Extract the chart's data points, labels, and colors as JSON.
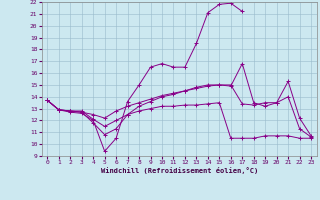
{
  "xlabel": "Windchill (Refroidissement éolien,°C)",
  "bg_color": "#cce8f0",
  "line_color": "#880088",
  "xlim": [
    -0.5,
    23.5
  ],
  "ylim": [
    9,
    22
  ],
  "xticks": [
    0,
    1,
    2,
    3,
    4,
    5,
    6,
    7,
    8,
    9,
    10,
    11,
    12,
    13,
    14,
    15,
    16,
    17,
    18,
    19,
    20,
    21,
    22,
    23
  ],
  "yticks": [
    9,
    10,
    11,
    12,
    13,
    14,
    15,
    16,
    17,
    18,
    19,
    20,
    21,
    22
  ],
  "series": [
    {
      "x": [
        0,
        1,
        2,
        3,
        4,
        5,
        6,
        7,
        8,
        9,
        10,
        11,
        12,
        13,
        14,
        15,
        16,
        17,
        18,
        19,
        20,
        21,
        22,
        23
      ],
      "y": [
        13.7,
        12.9,
        12.7,
        12.6,
        12.0,
        9.4,
        10.5,
        13.6,
        15.0,
        16.5,
        16.8,
        16.5,
        16.5,
        18.5,
        21.1,
        21.8,
        21.9,
        21.2,
        null,
        null,
        null,
        null,
        null,
        null
      ]
    },
    {
      "x": [
        0,
        1,
        2,
        3,
        4,
        5,
        6,
        7,
        8,
        9,
        10,
        11,
        12,
        13,
        14,
        15,
        16,
        17,
        18,
        19,
        20,
        21,
        22,
        23
      ],
      "y": [
        13.7,
        12.9,
        12.8,
        12.8,
        12.1,
        11.5,
        12.0,
        12.5,
        12.8,
        13.0,
        13.2,
        13.2,
        13.3,
        13.3,
        13.4,
        13.5,
        10.5,
        10.5,
        10.5,
        10.7,
        10.7,
        10.7,
        10.5,
        10.5
      ]
    },
    {
      "x": [
        0,
        1,
        2,
        3,
        4,
        5,
        6,
        7,
        8,
        9,
        10,
        11,
        12,
        13,
        14,
        15,
        16,
        17,
        18,
        19,
        20,
        21,
        22,
        23
      ],
      "y": [
        13.7,
        12.9,
        12.8,
        12.7,
        12.5,
        12.2,
        12.8,
        13.2,
        13.5,
        13.8,
        14.1,
        14.3,
        14.5,
        14.7,
        14.9,
        15.0,
        15.0,
        13.4,
        13.3,
        13.5,
        13.5,
        15.3,
        12.2,
        10.7
      ]
    },
    {
      "x": [
        0,
        1,
        2,
        3,
        4,
        5,
        6,
        7,
        8,
        9,
        10,
        11,
        12,
        13,
        14,
        15,
        16,
        17,
        18,
        19,
        20,
        21,
        22,
        23
      ],
      "y": [
        13.7,
        12.9,
        12.8,
        12.7,
        11.8,
        10.8,
        11.3,
        12.5,
        13.2,
        13.6,
        14.0,
        14.2,
        14.5,
        14.8,
        15.0,
        15.0,
        14.9,
        16.8,
        13.5,
        13.2,
        13.5,
        14.0,
        11.3,
        10.6
      ]
    }
  ]
}
